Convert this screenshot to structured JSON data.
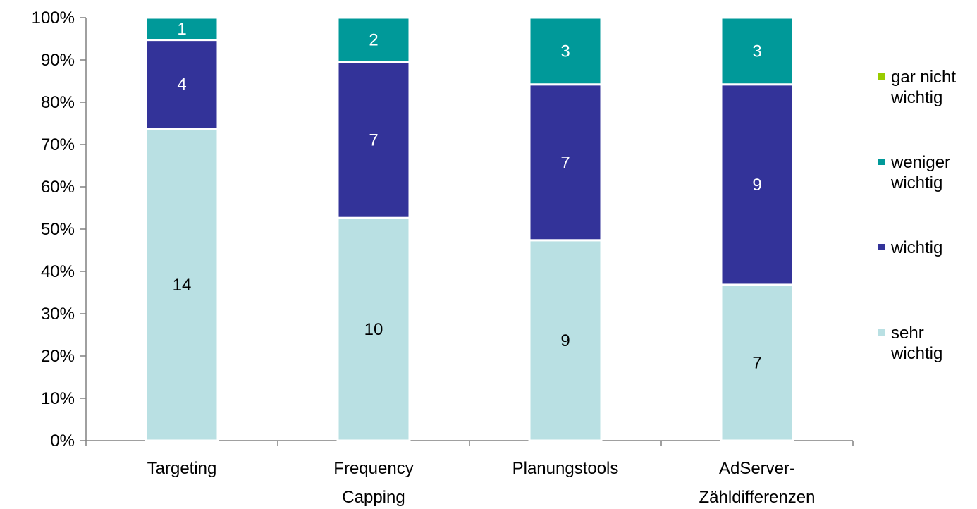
{
  "chart_data": {
    "type": "bar",
    "stacked": true,
    "percent_stacked": true,
    "categories": [
      [
        "Targeting"
      ],
      [
        "Frequency",
        "Capping"
      ],
      [
        "Planungstools"
      ],
      [
        "AdServer-",
        "Zähldifferenzen"
      ]
    ],
    "series": [
      {
        "name": "sehr wichtig",
        "legend_lines": [
          "sehr",
          "wichtig"
        ],
        "color": "#b9e0e3",
        "label_color": "#000000",
        "values": [
          14,
          10,
          9,
          7
        ]
      },
      {
        "name": "wichtig",
        "legend_lines": [
          "wichtig"
        ],
        "color": "#333399",
        "label_color": "#ffffff",
        "values": [
          4,
          7,
          7,
          9
        ]
      },
      {
        "name": "weniger wichtig",
        "legend_lines": [
          "weniger",
          "wichtig"
        ],
        "color": "#009999",
        "label_color": "#ffffff",
        "values": [
          1,
          2,
          3,
          3
        ]
      },
      {
        "name": "gar nicht wichtig",
        "legend_lines": [
          "gar nicht",
          "wichtig"
        ],
        "color": "#99cc00",
        "label_color": "#000000",
        "values": [
          0,
          0,
          0,
          0
        ]
      }
    ],
    "y_ticks": [
      "0%",
      "10%",
      "20%",
      "30%",
      "40%",
      "50%",
      "60%",
      "70%",
      "80%",
      "90%",
      "100%"
    ],
    "ylim": [
      0,
      100
    ],
    "grid": false,
    "legend_position": "right"
  }
}
